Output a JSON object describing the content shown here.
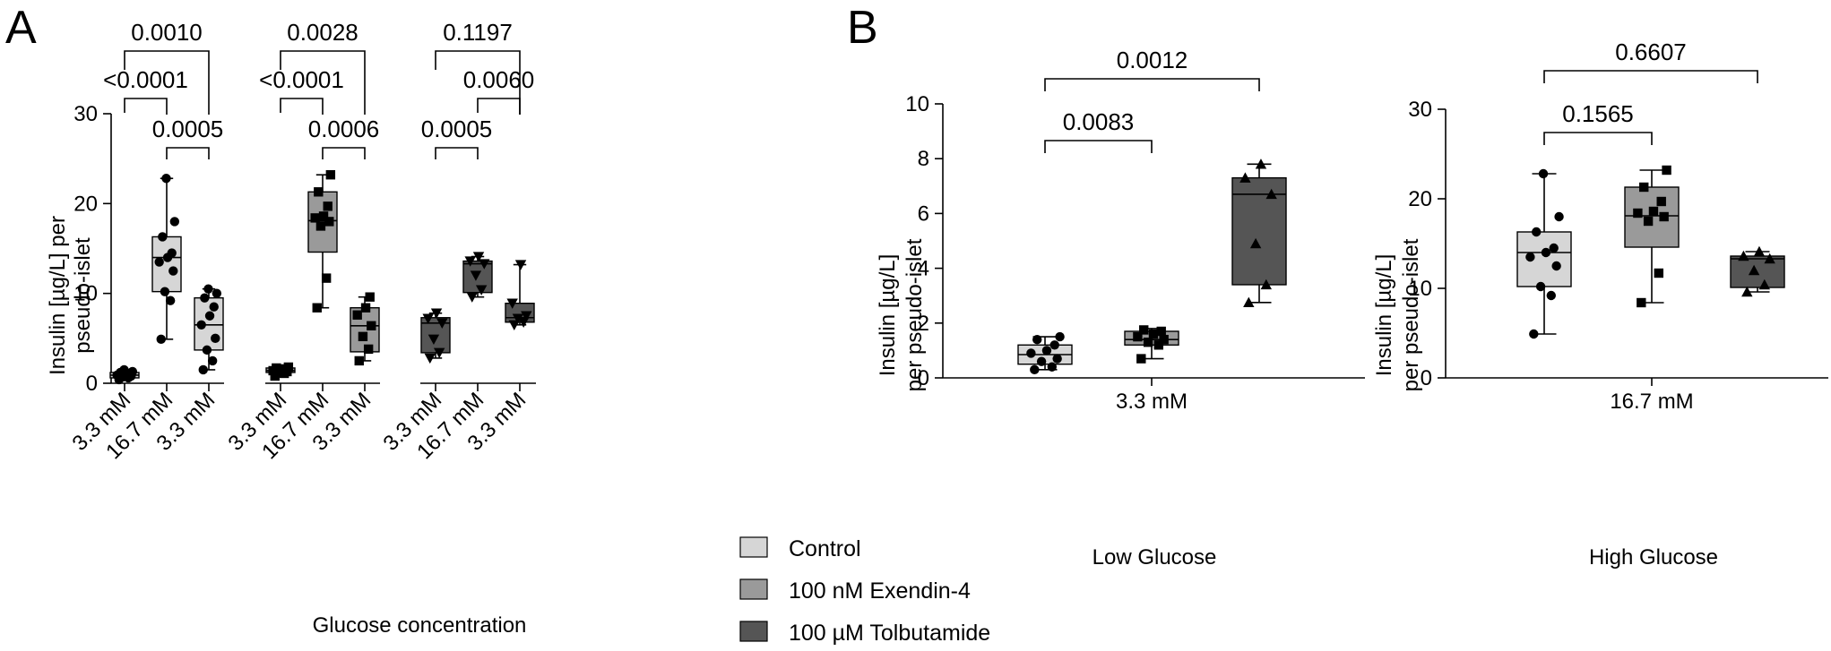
{
  "panel_labels": {
    "a": "A",
    "b": "B"
  },
  "colors": {
    "control": "#d6d6d6",
    "exendin": "#9a9a9a",
    "tolbutamide": "#555555",
    "ink": "#000000"
  },
  "legend": {
    "control": "Control",
    "exendin": "100 nM Exendin-4",
    "tolbutamide": "100 µM Tolbutamide"
  },
  "chart_data": [
    {
      "id": "A",
      "type": "box",
      "xlabel": "Glucose concentration",
      "ylabel": [
        "Insulin [µg/L] per",
        "pseudo-islet"
      ],
      "ylim": [
        0,
        30
      ],
      "yticks": [
        0,
        10,
        20,
        30
      ],
      "categories": [
        "3.3 mM",
        "16.7 mM",
        "3.3 mM",
        "3.3 mM",
        "16.7 mM",
        "3.3 mM",
        "3.3 mM",
        "16.7 mM",
        "3.3 mM"
      ],
      "series": [
        {
          "name": "Control",
          "color": "#d6d6d6",
          "marker": "circle",
          "boxes": [
            {
              "category_index": 0,
              "min": 0.4,
              "q1": 0.6,
              "median": 0.9,
              "q3": 1.2,
              "max": 1.5,
              "points": [
                0.4,
                0.6,
                0.7,
                0.8,
                0.9,
                1.0,
                1.1,
                1.2,
                1.3,
                1.5
              ]
            },
            {
              "category_index": 1,
              "min": 4.9,
              "q1": 10.2,
              "median": 14.0,
              "q3": 16.3,
              "max": 22.8,
              "points": [
                4.9,
                9.2,
                10.2,
                12.5,
                13.5,
                14.0,
                14.5,
                16.3,
                18.0,
                22.8
              ]
            },
            {
              "category_index": 2,
              "min": 1.5,
              "q1": 3.7,
              "median": 6.5,
              "q3": 9.5,
              "max": 10.5,
              "points": [
                1.5,
                2.5,
                3.7,
                5.0,
                6.5,
                7.5,
                8.5,
                9.5,
                10.0,
                10.5
              ]
            }
          ]
        },
        {
          "name": "100 nM Exendin-4",
          "color": "#9a9a9a",
          "marker": "square",
          "boxes": [
            {
              "category_index": 3,
              "min": 0.8,
              "q1": 1.2,
              "median": 1.4,
              "q3": 1.7,
              "max": 1.8,
              "points": [
                0.8,
                1.1,
                1.2,
                1.3,
                1.4,
                1.5,
                1.6,
                1.7,
                1.8
              ]
            },
            {
              "category_index": 4,
              "min": 8.4,
              "q1": 14.6,
              "median": 18.1,
              "q3": 21.3,
              "max": 23.2,
              "points": [
                8.4,
                11.7,
                17.5,
                18.0,
                18.4,
                18.6,
                19.7,
                21.3,
                23.2
              ]
            },
            {
              "category_index": 5,
              "min": 2.5,
              "q1": 3.5,
              "median": 6.4,
              "q3": 8.4,
              "max": 9.6,
              "points": [
                2.5,
                3.8,
                5.2,
                6.4,
                7.6,
                8.4,
                9.6
              ]
            }
          ]
        },
        {
          "name": "100 µM Tolbutamide",
          "color": "#555555",
          "marker": "triangle-down",
          "boxes": [
            {
              "category_index": 6,
              "min": 2.8,
              "q1": 3.4,
              "median": 6.7,
              "q3": 7.3,
              "max": 7.8,
              "points": [
                2.8,
                3.4,
                4.9,
                6.7,
                7.2,
                7.8
              ]
            },
            {
              "category_index": 7,
              "min": 9.6,
              "q1": 10.1,
              "median": 13.3,
              "q3": 13.6,
              "max": 14.1,
              "points": [
                9.6,
                10.4,
                12.0,
                13.3,
                13.6,
                14.1
              ]
            },
            {
              "category_index": 8,
              "min": 6.5,
              "q1": 6.8,
              "median": 7.3,
              "q3": 8.9,
              "max": 13.2,
              "points": [
                6.5,
                6.8,
                7.2,
                7.5,
                8.9,
                13.2
              ]
            }
          ]
        }
      ],
      "comparisons": [
        {
          "from": 0,
          "to": 2,
          "label": "0.0010",
          "tier": "top"
        },
        {
          "from": 0,
          "to": 1,
          "label": "<0.0001",
          "tier": "mid"
        },
        {
          "from": 1,
          "to": 2,
          "label": "0.0005",
          "tier": "low"
        },
        {
          "from": 3,
          "to": 5,
          "label": "0.0028",
          "tier": "top"
        },
        {
          "from": 3,
          "to": 4,
          "label": "<0.0001",
          "tier": "mid"
        },
        {
          "from": 4,
          "to": 5,
          "label": "0.0006",
          "tier": "low"
        },
        {
          "from": 6,
          "to": 8,
          "label": "0.1197",
          "tier": "top"
        },
        {
          "from": 7,
          "to": 8,
          "label": "0.0060",
          "tier": "mid"
        },
        {
          "from": 6,
          "to": 7,
          "label": "0.0005",
          "tier": "low"
        }
      ]
    },
    {
      "id": "B-low",
      "type": "box",
      "xlabel": "Low Glucose",
      "ylabel": [
        "Insulin [µg/L]",
        "per pseudo-islet"
      ],
      "ylim": [
        0,
        10
      ],
      "yticks": [
        0,
        2,
        4,
        6,
        8,
        10
      ],
      "categories": [
        "3.3 mM"
      ],
      "boxes": [
        {
          "series": "Control",
          "color": "#d6d6d6",
          "marker": "circle",
          "min": 0.3,
          "q1": 0.5,
          "median": 0.85,
          "q3": 1.2,
          "max": 1.5,
          "points": [
            0.3,
            0.4,
            0.6,
            0.7,
            0.9,
            1.0,
            1.2,
            1.4,
            1.5
          ]
        },
        {
          "series": "100 nM Exendin-4",
          "color": "#9a9a9a",
          "marker": "square",
          "min": 0.7,
          "q1": 1.2,
          "median": 1.4,
          "q3": 1.7,
          "max": 1.8,
          "points": [
            0.7,
            1.2,
            1.3,
            1.4,
            1.5,
            1.6,
            1.7,
            1.75
          ]
        },
        {
          "series": "100 µM Tolbutamide",
          "color": "#555555",
          "marker": "triangle",
          "min": 2.75,
          "q1": 3.4,
          "median": 6.7,
          "q3": 7.3,
          "max": 7.8,
          "points": [
            2.75,
            3.4,
            4.9,
            6.7,
            7.3,
            7.8
          ]
        }
      ],
      "comparisons": [
        {
          "from": 0,
          "to": 2,
          "label": "0.0012"
        },
        {
          "from": 0,
          "to": 1,
          "label": "0.0083"
        }
      ]
    },
    {
      "id": "B-high",
      "type": "box",
      "xlabel": "High Glucose",
      "ylabel": [
        "Insulin [µg/L]",
        "per pseudo-islet"
      ],
      "ylim": [
        0,
        30
      ],
      "yticks": [
        0,
        10,
        20,
        30
      ],
      "categories": [
        "16.7 mM"
      ],
      "boxes": [
        {
          "series": "Control",
          "color": "#d6d6d6",
          "marker": "circle",
          "min": 4.9,
          "q1": 10.2,
          "median": 14.0,
          "q3": 16.3,
          "max": 22.8,
          "points": [
            4.9,
            9.2,
            10.2,
            12.5,
            13.5,
            14.0,
            14.5,
            16.3,
            18.0,
            22.8
          ]
        },
        {
          "series": "100 nM Exendin-4",
          "color": "#9a9a9a",
          "marker": "square",
          "min": 8.4,
          "q1": 14.6,
          "median": 18.1,
          "q3": 21.3,
          "max": 23.2,
          "points": [
            8.4,
            11.7,
            17.5,
            18.0,
            18.4,
            18.6,
            19.7,
            21.3,
            23.2
          ]
        },
        {
          "series": "100 µM Tolbutamide",
          "color": "#555555",
          "marker": "triangle",
          "min": 9.6,
          "q1": 10.1,
          "median": 13.3,
          "q3": 13.6,
          "max": 14.1,
          "points": [
            9.6,
            10.4,
            12.0,
            13.3,
            13.6,
            14.1
          ]
        }
      ],
      "comparisons": [
        {
          "from": 0,
          "to": 2,
          "label": "0.6607"
        },
        {
          "from": 0,
          "to": 1,
          "label": "0.1565"
        }
      ]
    }
  ]
}
